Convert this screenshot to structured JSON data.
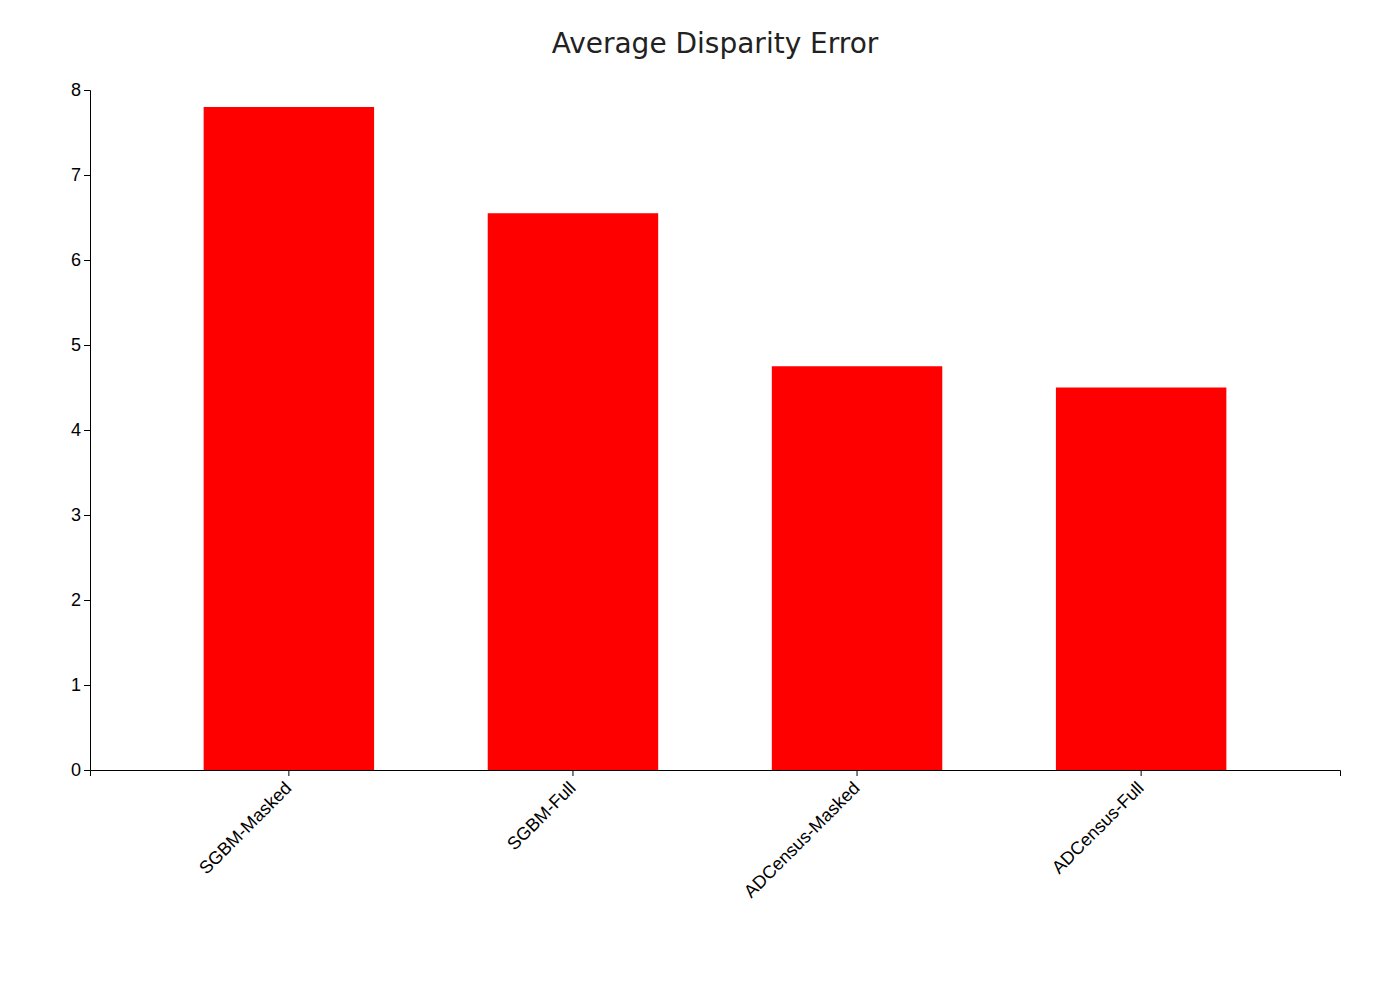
{
  "chart_data": {
    "type": "bar",
    "title": "Average Disparity Error",
    "categories": [
      "SGBM-Masked",
      "SGBM-Full",
      "ADCensus-Masked",
      "ADCensus-Full"
    ],
    "values": [
      7.8,
      6.55,
      4.75,
      4.5
    ],
    "color": "#ff0000",
    "ylim": [
      0,
      8
    ],
    "yticks": [
      0,
      1,
      2,
      3,
      4,
      5,
      6,
      7,
      8
    ],
    "grid": false
  }
}
